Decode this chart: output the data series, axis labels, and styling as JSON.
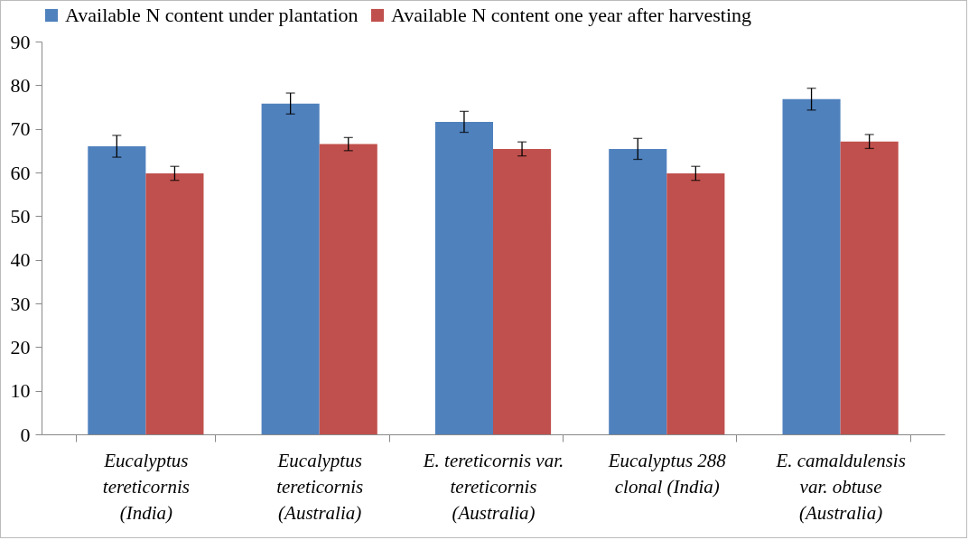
{
  "chart_data": {
    "type": "bar",
    "categories": [
      "Eucalyptus\ntereticornis\n(India)",
      "Eucalyptus\ntereticornis\n(Australia)",
      "E. tereticornis var.\ntereticornis\n(Australia)",
      "Eucalyptus 288\nclonal (India)",
      "E. camaldulensis\nvar. obtuse\n(Australia)"
    ],
    "series": [
      {
        "name": "Available N content under plantation",
        "color": "#4f81bd",
        "values": [
          66.0,
          75.8,
          71.6,
          65.4,
          76.8
        ],
        "errors": [
          2.5,
          2.4,
          2.4,
          2.4,
          2.5
        ]
      },
      {
        "name": "Available N content one year after harvesting",
        "color": "#c0504d",
        "values": [
          59.8,
          66.5,
          65.4,
          59.8,
          67.1
        ],
        "errors": [
          1.6,
          1.5,
          1.6,
          1.6,
          1.6
        ]
      }
    ],
    "ylim": [
      0,
      90
    ],
    "yticks": [
      0,
      10,
      20,
      30,
      40,
      50,
      60,
      70,
      80,
      90
    ],
    "grid": false,
    "legend": "top"
  }
}
